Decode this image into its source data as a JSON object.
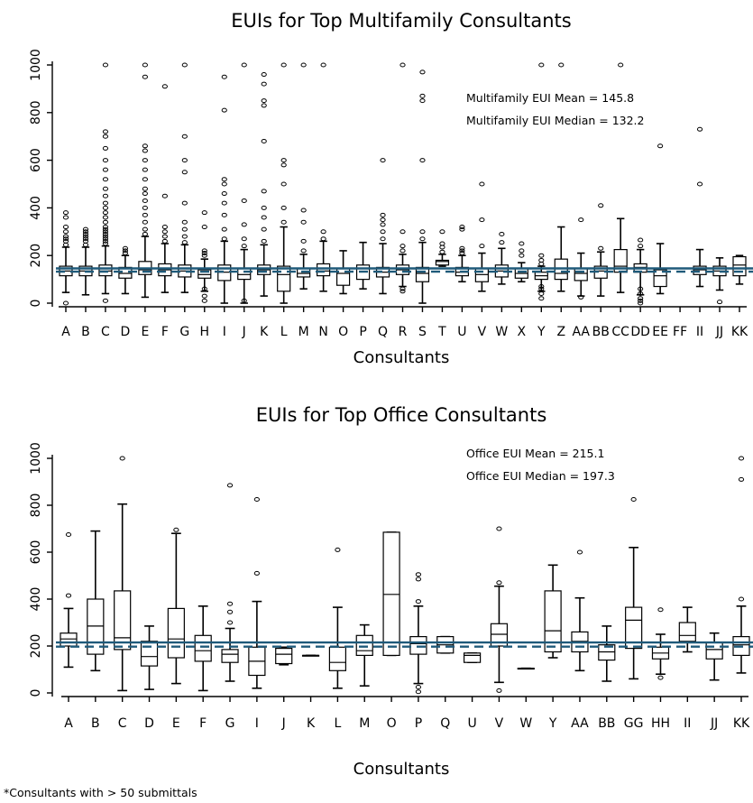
{
  "footnote": "*Consultants with > 50 submittals",
  "chart_data": [
    {
      "type": "box",
      "title": "EUIs for Top Multifamily Consultants",
      "xlabel": "Consultants",
      "ylabel": "",
      "ylim": [
        0,
        1000
      ],
      "yticks": [
        0,
        200,
        400,
        600,
        800,
        1000
      ],
      "annotations": [
        "Multifamily EUI Mean = 145.8",
        "Multifamily EUI Median = 132.2"
      ],
      "reference_lines": {
        "mean": 145.8,
        "median": 132.2
      },
      "line_color": "#1f5a7a",
      "categories": [
        "A",
        "B",
        "C",
        "D",
        "E",
        "F",
        "G",
        "H",
        "I",
        "J",
        "K",
        "L",
        "M",
        "N",
        "O",
        "P",
        "Q",
        "R",
        "S",
        "T",
        "U",
        "V",
        "W",
        "X",
        "Y",
        "Z",
        "AA",
        "BB",
        "CC",
        "DD",
        "EE",
        "FF",
        "II",
        "JJ",
        "KK"
      ],
      "boxes": [
        {
          "min": 45,
          "q1": 115,
          "median": 135,
          "q3": 155,
          "max": 235,
          "outliers": [
            0,
            245,
            260,
            270,
            280,
            300,
            320,
            360,
            380
          ]
        },
        {
          "min": 35,
          "q1": 115,
          "median": 135,
          "q3": 155,
          "max": 235,
          "outliers": [
            245,
            260,
            270,
            280,
            290,
            300,
            310
          ]
        },
        {
          "min": 40,
          "q1": 115,
          "median": 135,
          "q3": 160,
          "max": 240,
          "outliers": [
            10,
            250,
            260,
            270,
            280,
            290,
            300,
            310,
            320,
            340,
            360,
            380,
            400,
            420,
            450,
            480,
            520,
            560,
            600,
            650,
            700,
            720,
            1000
          ]
        },
        {
          "min": 40,
          "q1": 105,
          "median": 125,
          "q3": 150,
          "max": 200,
          "outliers": [
            210,
            220,
            230
          ]
        },
        {
          "min": 25,
          "q1": 120,
          "median": 140,
          "q3": 175,
          "max": 280,
          "outliers": [
            290,
            310,
            340,
            370,
            400,
            430,
            460,
            480,
            520,
            560,
            600,
            640,
            660,
            950,
            1000
          ]
        },
        {
          "min": 45,
          "q1": 115,
          "median": 140,
          "q3": 165,
          "max": 250,
          "outliers": [
            260,
            280,
            300,
            320,
            450,
            910
          ]
        },
        {
          "min": 45,
          "q1": 110,
          "median": 135,
          "q3": 160,
          "max": 245,
          "outliers": [
            255,
            280,
            310,
            340,
            420,
            550,
            600,
            700,
            1000
          ]
        },
        {
          "min": 50,
          "q1": 105,
          "median": 120,
          "q3": 140,
          "max": 185,
          "outliers": [
            10,
            30,
            60,
            200,
            210,
            220,
            320,
            380
          ]
        },
        {
          "min": 0,
          "q1": 95,
          "median": 130,
          "q3": 160,
          "max": 260,
          "outliers": [
            270,
            310,
            370,
            420,
            460,
            500,
            520,
            810,
            950
          ]
        },
        {
          "min": 0,
          "q1": 100,
          "median": 120,
          "q3": 145,
          "max": 225,
          "outliers": [
            10,
            240,
            270,
            330,
            430,
            1000
          ]
        },
        {
          "min": 30,
          "q1": 120,
          "median": 140,
          "q3": 160,
          "max": 245,
          "outliers": [
            260,
            310,
            360,
            400,
            470,
            680,
            830,
            850,
            920,
            960
          ]
        },
        {
          "min": 0,
          "q1": 50,
          "median": 120,
          "q3": 155,
          "max": 320,
          "outliers": [
            340,
            400,
            500,
            580,
            600,
            1000
          ]
        },
        {
          "min": 60,
          "q1": 110,
          "median": 125,
          "q3": 145,
          "max": 205,
          "outliers": [
            220,
            260,
            340,
            390,
            1000
          ]
        },
        {
          "min": 50,
          "q1": 115,
          "median": 135,
          "q3": 165,
          "max": 260,
          "outliers": [
            270,
            300,
            1000
          ]
        },
        {
          "min": 40,
          "q1": 75,
          "median": 125,
          "q3": 145,
          "max": 220,
          "outliers": []
        },
        {
          "min": 60,
          "q1": 100,
          "median": 145,
          "q3": 160,
          "max": 255,
          "outliers": []
        },
        {
          "min": 40,
          "q1": 110,
          "median": 130,
          "q3": 150,
          "max": 250,
          "outliers": [
            270,
            300,
            330,
            350,
            370,
            600
          ]
        },
        {
          "min": 70,
          "q1": 120,
          "median": 140,
          "q3": 160,
          "max": 205,
          "outliers": [
            50,
            60,
            220,
            240,
            300,
            1000
          ]
        },
        {
          "min": 0,
          "q1": 90,
          "median": 125,
          "q3": 150,
          "max": 255,
          "outliers": [
            270,
            300,
            600,
            850,
            870,
            970
          ]
        },
        {
          "min": 155,
          "q1": 160,
          "median": 175,
          "q3": 180,
          "max": 205,
          "outliers": [
            215,
            235,
            250,
            300
          ]
        },
        {
          "min": 90,
          "q1": 115,
          "median": 130,
          "q3": 150,
          "max": 200,
          "outliers": [
            210,
            220,
            230,
            310,
            320
          ]
        },
        {
          "min": 50,
          "q1": 90,
          "median": 120,
          "q3": 145,
          "max": 210,
          "outliers": [
            240,
            350,
            500
          ]
        },
        {
          "min": 80,
          "q1": 110,
          "median": 135,
          "q3": 160,
          "max": 230,
          "outliers": [
            255,
            290
          ]
        },
        {
          "min": 90,
          "q1": 105,
          "median": 125,
          "q3": 145,
          "max": 170,
          "outliers": [
            200,
            220,
            250
          ]
        },
        {
          "min": 50,
          "q1": 100,
          "median": 115,
          "q3": 130,
          "max": 155,
          "outliers": [
            20,
            40,
            60,
            70,
            165,
            180,
            200,
            1000
          ]
        },
        {
          "min": 50,
          "q1": 100,
          "median": 125,
          "q3": 185,
          "max": 320,
          "outliers": [
            1000
          ]
        },
        {
          "min": 30,
          "q1": 95,
          "median": 125,
          "q3": 145,
          "max": 210,
          "outliers": [
            25,
            350
          ]
        },
        {
          "min": 30,
          "q1": 105,
          "median": 135,
          "q3": 155,
          "max": 215,
          "outliers": [
            230,
            410
          ]
        },
        {
          "min": 45,
          "q1": 130,
          "median": 155,
          "q3": 225,
          "max": 355,
          "outliers": [
            1000
          ]
        },
        {
          "min": 35,
          "q1": 130,
          "median": 150,
          "q3": 165,
          "max": 225,
          "outliers": [
            0,
            10,
            20,
            40,
            60,
            240,
            265
          ]
        },
        {
          "min": 40,
          "q1": 70,
          "median": 115,
          "q3": 140,
          "max": 250,
          "outliers": [
            660
          ]
        },
        {
          "min": null,
          "q1": null,
          "median": null,
          "q3": null,
          "max": null,
          "outliers": []
        },
        {
          "min": 70,
          "q1": 120,
          "median": 140,
          "q3": 155,
          "max": 225,
          "outliers": [
            500,
            730
          ]
        },
        {
          "min": 55,
          "q1": 115,
          "median": 135,
          "q3": 155,
          "max": 190,
          "outliers": [
            5
          ]
        },
        {
          "min": 80,
          "q1": 115,
          "median": 160,
          "q3": 195,
          "max": 200,
          "outliers": []
        }
      ]
    },
    {
      "type": "box",
      "title": "EUIs for Top Office Consultants",
      "xlabel": "Consultants",
      "ylabel": "",
      "ylim": [
        0,
        1000
      ],
      "yticks": [
        0,
        200,
        400,
        600,
        800,
        1000
      ],
      "annotations": [
        "Office EUI Mean = 215.1",
        "Office EUI Median = 197.3"
      ],
      "reference_lines": {
        "mean": 215.1,
        "median": 197.3
      },
      "line_color": "#1f5a7a",
      "categories": [
        "A",
        "B",
        "C",
        "D",
        "E",
        "F",
        "G",
        "I",
        "J",
        "K",
        "L",
        "M",
        "O",
        "P",
        "Q",
        "U",
        "V",
        "W",
        "Y",
        "AA",
        "BB",
        "GG",
        "HH",
        "II",
        "JJ",
        "KK"
      ],
      "boxes": [
        {
          "min": 110,
          "q1": 200,
          "median": 230,
          "q3": 255,
          "max": 360,
          "outliers": [
            415,
            675
          ]
        },
        {
          "min": 95,
          "q1": 165,
          "median": 285,
          "q3": 400,
          "max": 690,
          "outliers": []
        },
        {
          "min": 10,
          "q1": 185,
          "median": 235,
          "q3": 435,
          "max": 805,
          "outliers": [
            1000
          ]
        },
        {
          "min": 15,
          "q1": 115,
          "median": 155,
          "q3": 220,
          "max": 285,
          "outliers": []
        },
        {
          "min": 40,
          "q1": 150,
          "median": 230,
          "q3": 360,
          "max": 680,
          "outliers": [
            695
          ]
        },
        {
          "min": 10,
          "q1": 135,
          "median": 180,
          "q3": 245,
          "max": 370,
          "outliers": []
        },
        {
          "min": 50,
          "q1": 130,
          "median": 165,
          "q3": 185,
          "max": 275,
          "outliers": [
            300,
            345,
            380,
            885
          ]
        },
        {
          "min": 20,
          "q1": 75,
          "median": 135,
          "q3": 195,
          "max": 390,
          "outliers": [
            510,
            825
          ]
        },
        {
          "min": 120,
          "q1": 125,
          "median": 165,
          "q3": 190,
          "max": 195,
          "outliers": []
        },
        {
          "min": 160,
          "q1": 160,
          "median": 160,
          "q3": 160,
          "max": 160,
          "outliers": []
        },
        {
          "min": 20,
          "q1": 95,
          "median": 130,
          "q3": 195,
          "max": 365,
          "outliers": [
            610
          ]
        },
        {
          "min": 30,
          "q1": 160,
          "median": 180,
          "q3": 245,
          "max": 290,
          "outliers": []
        },
        {
          "min": 160,
          "q1": 160,
          "median": 420,
          "q3": 685,
          "max": 685,
          "outliers": []
        },
        {
          "min": 40,
          "q1": 165,
          "median": 210,
          "q3": 240,
          "max": 370,
          "outliers": [
            5,
            25,
            390,
            485,
            505
          ]
        },
        {
          "min": 170,
          "q1": 170,
          "median": 205,
          "q3": 240,
          "max": 240,
          "outliers": []
        },
        {
          "min": 130,
          "q1": 130,
          "median": 160,
          "q3": 170,
          "max": 170,
          "outliers": []
        },
        {
          "min": 45,
          "q1": 200,
          "median": 250,
          "q3": 295,
          "max": 455,
          "outliers": [
            10,
            470,
            700
          ]
        },
        {
          "min": 105,
          "q1": 105,
          "median": 105,
          "q3": 105,
          "max": 105,
          "outliers": []
        },
        {
          "min": 150,
          "q1": 175,
          "median": 265,
          "q3": 435,
          "max": 545,
          "outliers": []
        },
        {
          "min": 95,
          "q1": 175,
          "median": 220,
          "q3": 260,
          "max": 405,
          "outliers": [
            600
          ]
        },
        {
          "min": 50,
          "q1": 140,
          "median": 175,
          "q3": 205,
          "max": 285,
          "outliers": []
        },
        {
          "min": 60,
          "q1": 190,
          "median": 310,
          "q3": 365,
          "max": 620,
          "outliers": [
            825
          ]
        },
        {
          "min": 80,
          "q1": 145,
          "median": 170,
          "q3": 195,
          "max": 250,
          "outliers": [
            65,
            355
          ]
        },
        {
          "min": 175,
          "q1": 220,
          "median": 245,
          "q3": 300,
          "max": 365,
          "outliers": []
        },
        {
          "min": 55,
          "q1": 145,
          "median": 185,
          "q3": 215,
          "max": 255,
          "outliers": []
        },
        {
          "min": 85,
          "q1": 160,
          "median": 205,
          "q3": 240,
          "max": 370,
          "outliers": [
            400,
            910,
            1000
          ]
        }
      ]
    }
  ]
}
